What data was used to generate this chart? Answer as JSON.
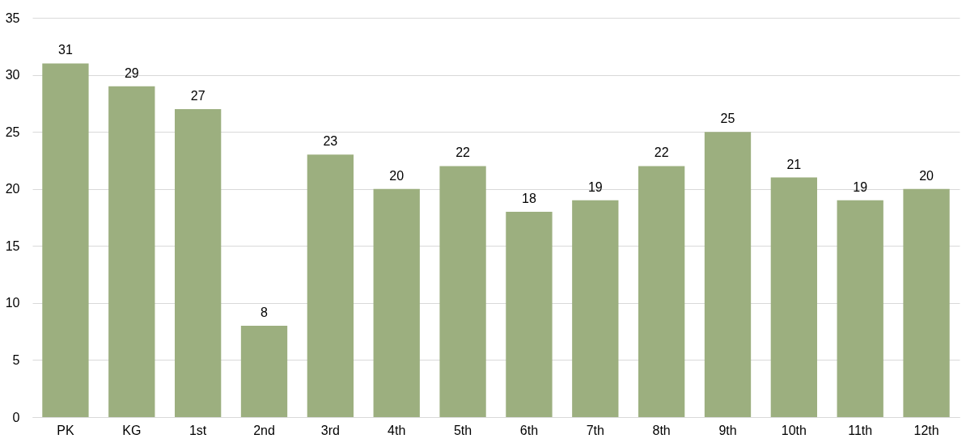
{
  "chart_data": {
    "type": "bar",
    "categories": [
      "PK",
      "KG",
      "1st",
      "2nd",
      "3rd",
      "4th",
      "5th",
      "6th",
      "7th",
      "8th",
      "9th",
      "10th",
      "11th",
      "12th"
    ],
    "values": [
      31,
      29,
      27,
      8,
      23,
      20,
      22,
      18,
      19,
      22,
      25,
      21,
      19,
      20
    ],
    "color": "#9caf7f",
    "ylim": [
      0,
      35
    ],
    "yticks": [
      0,
      5,
      10,
      15,
      20,
      25,
      30,
      35
    ],
    "grid": "y",
    "data_labels": true
  }
}
